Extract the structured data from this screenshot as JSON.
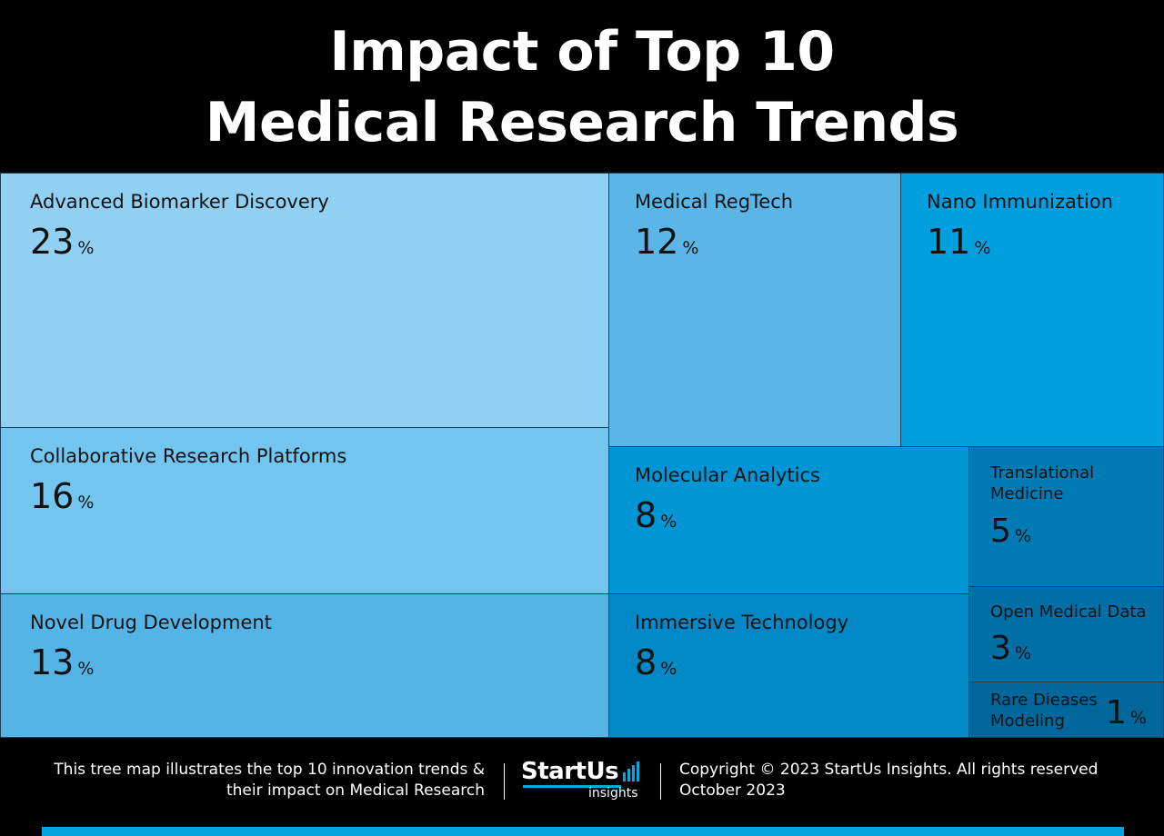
{
  "title": {
    "line1": "Impact of Top 10",
    "line2": "Medical Research Trends"
  },
  "chart_data": {
    "type": "treemap",
    "unit": "%",
    "items": [
      {
        "label": "Advanced Biomarker Discovery",
        "value": 23,
        "color": "#90d0f2"
      },
      {
        "label": "Collaborative Research Platforms",
        "value": 16,
        "color": "#72c5ee"
      },
      {
        "label": "Novel Drug Development",
        "value": 13,
        "color": "#55b4e6"
      },
      {
        "label": "Medical RegTech",
        "value": 12,
        "color": "#5ab6e6"
      },
      {
        "label": "Nano Immunization",
        "value": 11,
        "color": "#009fdf"
      },
      {
        "label": "Molecular Analytics",
        "value": 8,
        "color": "#0096d5"
      },
      {
        "label": "Immersive Technology",
        "value": 8,
        "color": "#0089c6"
      },
      {
        "label": "Translational\nMedicine",
        "value": 5,
        "color": "#007ab4"
      },
      {
        "label": "Open Medical Data",
        "value": 3,
        "color": "#006fa6"
      },
      {
        "label": "Rare Dieases\nModeling",
        "value": 1,
        "color": "#00679c"
      }
    ]
  },
  "footer": {
    "description_line1": "This tree map illustrates the top 10 innovation trends &",
    "description_line2": "their impact on Medical Research",
    "logo_brand": "StartUs",
    "logo_sub": "insights",
    "copyright": "Copyright © 2023 StartUs Insights. All rights reserved",
    "date": "October 2023",
    "accent_color": "#02a4e0"
  }
}
